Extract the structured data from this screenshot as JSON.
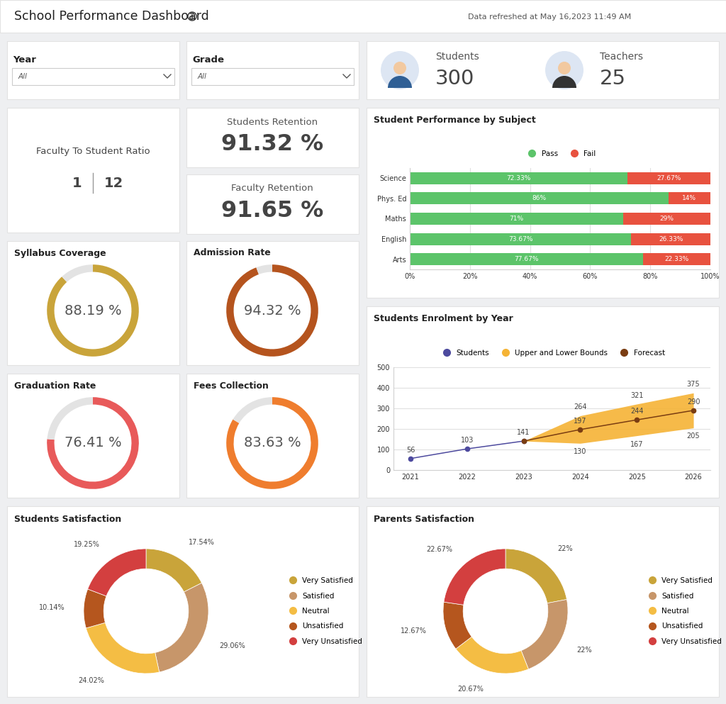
{
  "header": {
    "title": "School Performance Dashboard",
    "refreshed": "Data refreshed at May 16,2023 11:49 AM"
  },
  "filters": [
    {
      "label": "Year",
      "value": "All"
    },
    {
      "label": "Grade",
      "value": "All"
    }
  ],
  "counts": [
    {
      "label": "Students",
      "value": 300
    },
    {
      "label": "Teachers",
      "value": 25
    }
  ],
  "ratio": {
    "title": "Faculty To Student Ratio",
    "faculty": 1,
    "students": 12
  },
  "retention": [
    {
      "title": "Students Retention",
      "value": "91.32 %"
    },
    {
      "title": "Faculty Retention",
      "value": "91.65 %"
    }
  ],
  "chart_data": [
    {
      "type": "gauge",
      "title": "Syllabus Coverage",
      "values": [
        88.19
      ],
      "value_labels": [
        "88.19 %"
      ],
      "color": "#c9a43a"
    },
    {
      "type": "gauge",
      "title": "Admission Rate",
      "values": [
        94.32
      ],
      "value_labels": [
        "94.32 %"
      ],
      "color": "#b5541e"
    },
    {
      "type": "gauge",
      "title": "Graduation Rate",
      "values": [
        76.41
      ],
      "value_labels": [
        "76.41 %"
      ],
      "color": "#e85a5a"
    },
    {
      "type": "gauge",
      "title": "Fees Collection",
      "values": [
        83.63
      ],
      "value_labels": [
        "83.63 %"
      ],
      "color": "#ef7d2e"
    },
    {
      "type": "bar",
      "title": "Student Performance by Subject",
      "orientation": "horizontal",
      "stacked": true,
      "categories": [
        "Science",
        "Phys. Ed",
        "Maths",
        "English",
        "Arts"
      ],
      "series": [
        {
          "name": "Pass",
          "color": "#5cc46a",
          "values": [
            72.33,
            86,
            71,
            73.67,
            77.67
          ],
          "value_labels": [
            "72.33%",
            "86%",
            "71%",
            "73.67%",
            "77.67%"
          ]
        },
        {
          "name": "Fail",
          "color": "#e8523f",
          "values": [
            27.67,
            14,
            29,
            26.33,
            22.33
          ],
          "value_labels": [
            "27.67%",
            "14%",
            "29%",
            "26.33%",
            "22.33%"
          ]
        }
      ],
      "xlim": [
        0,
        100
      ],
      "xticks": [
        {
          "value": 0,
          "label": "0%"
        },
        {
          "value": 20,
          "label": "20%"
        },
        {
          "value": 40,
          "label": "40%"
        },
        {
          "value": 60,
          "label": "60%"
        },
        {
          "value": 80,
          "label": "80%"
        },
        {
          "value": 100,
          "label": "100%"
        }
      ],
      "grid": true,
      "legend": "upper center",
      "data_labels": true
    },
    {
      "type": "line",
      "title": "Students Enrolment by Year",
      "categories": [
        "2021",
        "2022",
        "2023",
        "2024",
        "2025",
        "2026"
      ],
      "series": [
        {
          "name": "Students",
          "color": "#4d4a9e",
          "marker": "circle",
          "values": [
            56,
            103,
            141,
            null,
            null,
            null
          ]
        },
        {
          "name": "Upper and Lower Bounds",
          "type": "area",
          "color": "#f5b335",
          "upper": [
            null,
            null,
            141,
            264,
            321,
            375
          ],
          "lower": [
            null,
            null,
            141,
            130,
            167,
            205
          ]
        },
        {
          "name": "Forecast",
          "color": "#7a3d12",
          "marker": "circle",
          "values": [
            null,
            null,
            141,
            197,
            244,
            290
          ]
        }
      ],
      "ylim": [
        0,
        500
      ],
      "yticks": [
        0,
        100,
        200,
        300,
        400,
        500
      ],
      "grid": true,
      "legend": "upper center",
      "data_labels": true
    },
    {
      "type": "donut",
      "title": "Students Satisfaction",
      "categories": [
        "Very Satisfied",
        "Satisfied",
        "Neutral",
        "Unsatisfied",
        "Very Unsatisfied"
      ],
      "values": [
        17.54,
        29.06,
        24.02,
        10.14,
        19.25
      ],
      "value_labels": [
        "17.54%",
        "29.06%",
        "24.02%",
        "10.14%",
        "19.25%"
      ],
      "colors": [
        "#c9a43a",
        "#c7966a",
        "#f4bd44",
        "#b5561e",
        "#d33f3f"
      ],
      "legend": "right",
      "data_labels": true
    },
    {
      "type": "donut",
      "title": "Parents Satisfaction",
      "categories": [
        "Very Satisfied",
        "Satisfied",
        "Neutral",
        "Unsatisfied",
        "Very Unsatisfied"
      ],
      "values": [
        22,
        22,
        20.67,
        12.67,
        22.67
      ],
      "value_labels": [
        "22%",
        "22%",
        "20.67%",
        "12.67%",
        "22.67%"
      ],
      "colors": [
        "#c9a43a",
        "#c7966a",
        "#f4bd44",
        "#b5561e",
        "#d33f3f"
      ],
      "legend": "right",
      "data_labels": true
    }
  ]
}
